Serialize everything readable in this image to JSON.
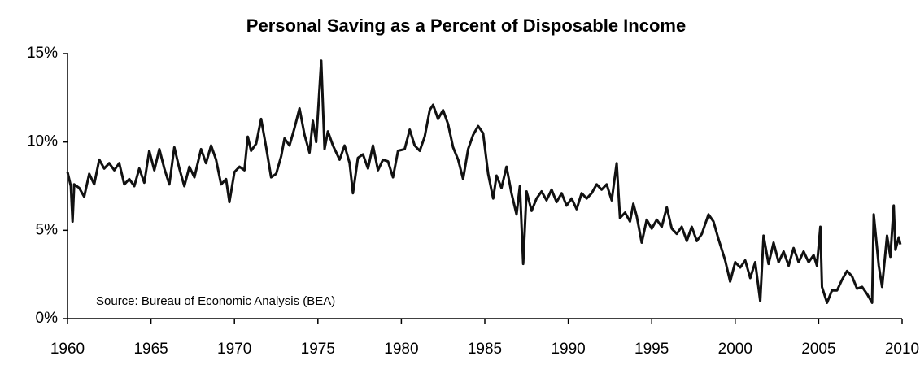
{
  "chart_data": {
    "type": "line",
    "title": "Personal Saving as a Percent of Disposable Income",
    "annotation": "Source: Bureau of Economic Analysis (BEA)",
    "color": "#111111",
    "xlim": [
      1960,
      2010
    ],
    "xticks": [
      1960,
      1965,
      1970,
      1975,
      1980,
      1985,
      1990,
      1995,
      2000,
      2005,
      2010
    ],
    "ylim": [
      0,
      15
    ],
    "yticks": [
      {
        "value": 0,
        "label": "0%"
      },
      {
        "value": 5,
        "label": "5%"
      },
      {
        "value": 10,
        "label": "10%"
      },
      {
        "value": 15,
        "label": "15%"
      }
    ],
    "x": [
      1960.0,
      1960.2,
      1960.3,
      1960.4,
      1960.7,
      1961.0,
      1961.3,
      1961.6,
      1961.9,
      1962.2,
      1962.5,
      1962.8,
      1963.1,
      1963.4,
      1963.7,
      1964.0,
      1964.3,
      1964.6,
      1964.9,
      1965.2,
      1965.5,
      1965.8,
      1966.1,
      1966.4,
      1966.7,
      1967.0,
      1967.3,
      1967.6,
      1968.0,
      1968.3,
      1968.6,
      1968.9,
      1969.2,
      1969.5,
      1969.7,
      1970.0,
      1970.3,
      1970.6,
      1970.8,
      1971.0,
      1971.3,
      1971.6,
      1971.9,
      1972.2,
      1972.5,
      1972.8,
      1973.0,
      1973.3,
      1973.6,
      1973.9,
      1974.2,
      1974.5,
      1974.7,
      1974.9,
      1975.2,
      1975.4,
      1975.6,
      1975.9,
      1976.3,
      1976.6,
      1976.9,
      1977.1,
      1977.4,
      1977.7,
      1978.0,
      1978.3,
      1978.6,
      1978.9,
      1979.2,
      1979.5,
      1979.8,
      1980.2,
      1980.5,
      1980.8,
      1981.1,
      1981.4,
      1981.7,
      1981.9,
      1982.2,
      1982.5,
      1982.8,
      1983.1,
      1983.4,
      1983.7,
      1984.0,
      1984.3,
      1984.6,
      1984.9,
      1985.2,
      1985.5,
      1985.7,
      1986.0,
      1986.3,
      1986.6,
      1986.9,
      1987.1,
      1987.3,
      1987.5,
      1987.8,
      1988.1,
      1988.4,
      1988.7,
      1989.0,
      1989.3,
      1989.6,
      1989.9,
      1990.2,
      1990.5,
      1990.8,
      1991.1,
      1991.4,
      1991.7,
      1992.0,
      1992.3,
      1992.6,
      1992.9,
      1993.1,
      1993.4,
      1993.7,
      1993.9,
      1994.1,
      1994.4,
      1994.7,
      1995.0,
      1995.3,
      1995.6,
      1995.9,
      1996.2,
      1996.5,
      1996.8,
      1997.1,
      1997.4,
      1997.7,
      1998.0,
      1998.4,
      1998.7,
      1999.0,
      1999.4,
      1999.7,
      2000.0,
      2000.3,
      2000.6,
      2000.9,
      2001.2,
      2001.5,
      2001.7,
      2002.0,
      2002.3,
      2002.6,
      2002.9,
      2003.2,
      2003.5,
      2003.8,
      2004.1,
      2004.4,
      2004.7,
      2004.9,
      2005.1,
      2005.2,
      2005.5,
      2005.8,
      2006.1,
      2006.4,
      2006.7,
      2007.0,
      2007.3,
      2007.6,
      2007.9,
      2008.2,
      2008.3,
      2008.6,
      2008.8,
      2009.1,
      2009.3,
      2009.5,
      2009.6,
      2009.8,
      2009.9
    ],
    "values": [
      8.3,
      7.5,
      5.5,
      7.6,
      7.4,
      6.9,
      8.2,
      7.6,
      9.0,
      8.5,
      8.8,
      8.4,
      8.8,
      7.6,
      7.9,
      7.5,
      8.5,
      7.7,
      9.5,
      8.4,
      9.6,
      8.5,
      7.6,
      9.7,
      8.5,
      7.5,
      8.6,
      8.0,
      9.6,
      8.8,
      9.8,
      9.0,
      7.6,
      7.9,
      6.6,
      8.3,
      8.6,
      8.4,
      10.3,
      9.5,
      9.9,
      11.3,
      9.7,
      8.0,
      8.2,
      9.2,
      10.2,
      9.8,
      10.8,
      11.9,
      10.4,
      9.4,
      11.2,
      10.0,
      14.6,
      9.6,
      10.6,
      9.8,
      9.0,
      9.8,
      8.8,
      7.1,
      9.1,
      9.3,
      8.5,
      9.8,
      8.4,
      9.0,
      8.9,
      8.0,
      9.5,
      9.6,
      10.7,
      9.8,
      9.5,
      10.3,
      11.8,
      12.1,
      11.3,
      11.8,
      11.0,
      9.7,
      9.0,
      7.9,
      9.6,
      10.4,
      10.9,
      10.5,
      8.2,
      6.8,
      8.1,
      7.4,
      8.6,
      7.1,
      5.9,
      7.5,
      3.1,
      7.2,
      6.1,
      6.8,
      7.2,
      6.7,
      7.3,
      6.6,
      7.1,
      6.4,
      6.8,
      6.2,
      7.1,
      6.8,
      7.1,
      7.6,
      7.3,
      7.6,
      6.7,
      8.8,
      5.7,
      6.0,
      5.5,
      6.5,
      5.8,
      4.3,
      5.6,
      5.1,
      5.6,
      5.2,
      6.3,
      5.1,
      4.8,
      5.2,
      4.4,
      5.2,
      4.4,
      4.8,
      5.9,
      5.5,
      4.5,
      3.3,
      2.1,
      3.2,
      2.9,
      3.3,
      2.3,
      3.2,
      1.0,
      4.7,
      3.1,
      4.3,
      3.2,
      3.8,
      3.0,
      4.0,
      3.2,
      3.8,
      3.2,
      3.6,
      3.0,
      5.2,
      1.8,
      0.9,
      1.6,
      1.6,
      2.2,
      2.7,
      2.4,
      1.7,
      1.8,
      1.4,
      0.9,
      5.9,
      3.0,
      1.8,
      4.7,
      3.5,
      6.4,
      3.9,
      4.6,
      4.2
    ]
  }
}
